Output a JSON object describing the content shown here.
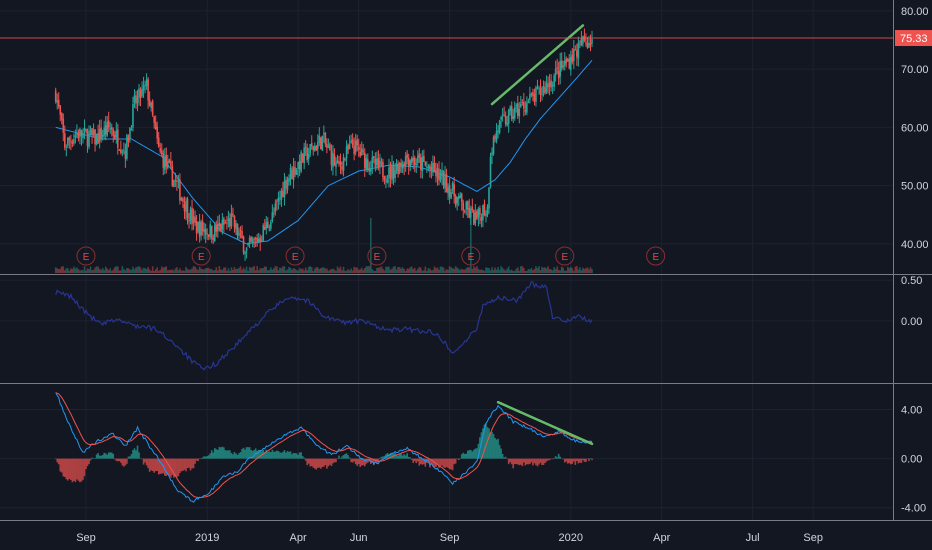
{
  "chart_data": {
    "type": "candlestick",
    "last_price_label": "75.33",
    "last_price": 75.33,
    "colors": {
      "background": "#131722",
      "up": "#26a69a",
      "down": "#ef5350",
      "ma": "#2196f3",
      "price_line": "#ef5350",
      "trendline": "#66bb6a",
      "indicator_line": "#283593",
      "macd": "#2196f3",
      "signal": "#ef5350",
      "grid": "#1e2230",
      "separator": "#787b86",
      "text": "#d1d4dc"
    },
    "x_axis": {
      "labels": [
        "Sep",
        "2019",
        "Apr",
        "Jun",
        "Sep",
        "2020",
        "Apr",
        "Jul",
        "Sep"
      ],
      "months": [
        0,
        4,
        7,
        9,
        12,
        16,
        19,
        22,
        24
      ]
    },
    "panes": {
      "price": {
        "ylim": [
          35,
          81
        ],
        "ticks": [
          "80.00",
          "70.00",
          "60.00",
          "50.00",
          "40.00"
        ],
        "tick_values": [
          80,
          70,
          60,
          50,
          40
        ]
      },
      "indicator": {
        "ylim": [
          -0.75,
          0.55
        ],
        "ticks": [
          "0.50",
          "0.00"
        ],
        "tick_values": [
          0.5,
          0.0
        ]
      },
      "macd": {
        "ylim": [
          -5,
          6
        ],
        "ticks": [
          "4.00",
          "0.00",
          "-4.00"
        ],
        "tick_values": [
          4,
          0,
          -4
        ]
      }
    },
    "price_anchors": [
      [
        -1.0,
        66
      ],
      [
        -0.7,
        57
      ],
      [
        -0.3,
        59
      ],
      [
        0.3,
        58
      ],
      [
        0.8,
        60
      ],
      [
        1.3,
        56
      ],
      [
        1.6,
        64
      ],
      [
        2.0,
        67
      ],
      [
        2.4,
        56
      ],
      [
        3.0,
        50
      ],
      [
        3.6,
        43
      ],
      [
        4.2,
        42
      ],
      [
        4.8,
        44
      ],
      [
        5.3,
        39
      ],
      [
        5.7,
        41
      ],
      [
        6.2,
        45
      ],
      [
        6.6,
        51
      ],
      [
        7.2,
        55
      ],
      [
        7.8,
        58
      ],
      [
        8.3,
        53
      ],
      [
        8.8,
        57
      ],
      [
        9.3,
        54
      ],
      [
        10.0,
        52
      ],
      [
        10.6,
        55
      ],
      [
        11.3,
        53
      ],
      [
        11.8,
        51
      ],
      [
        12.5,
        46
      ],
      [
        12.9,
        44
      ],
      [
        13.1,
        46
      ],
      [
        13.25,
        46
      ],
      [
        13.35,
        56
      ],
      [
        13.6,
        60
      ],
      [
        14.0,
        62
      ],
      [
        14.5,
        64
      ],
      [
        15.0,
        66
      ],
      [
        15.5,
        69
      ],
      [
        16.0,
        72
      ],
      [
        16.4,
        74.5
      ],
      [
        16.7,
        75.33
      ]
    ],
    "ma_anchors": [
      [
        -1.0,
        60
      ],
      [
        0.5,
        58
      ],
      [
        1.5,
        58
      ],
      [
        2.5,
        55
      ],
      [
        3.5,
        48
      ],
      [
        4.5,
        42
      ],
      [
        5.3,
        40
      ],
      [
        6.0,
        40.5
      ],
      [
        7.0,
        44
      ],
      [
        8.0,
        50
      ],
      [
        9.0,
        52.5
      ],
      [
        10.0,
        53.5
      ],
      [
        11.0,
        53.2
      ],
      [
        12.0,
        51.5
      ],
      [
        12.9,
        49
      ],
      [
        13.5,
        51
      ],
      [
        14.0,
        54
      ],
      [
        14.5,
        58
      ],
      [
        15.0,
        61.5
      ],
      [
        15.6,
        65
      ],
      [
        16.2,
        68.5
      ],
      [
        16.7,
        71.5
      ]
    ],
    "indicator_anchors": [
      [
        -1.0,
        0.35
      ],
      [
        -0.5,
        0.3
      ],
      [
        0.0,
        0.1
      ],
      [
        0.5,
        -0.05
      ],
      [
        1.0,
        0.02
      ],
      [
        1.5,
        -0.05
      ],
      [
        2.3,
        -0.1
      ],
      [
        3.0,
        -0.3
      ],
      [
        3.5,
        -0.5
      ],
      [
        3.9,
        -0.6
      ],
      [
        4.3,
        -0.52
      ],
      [
        5.0,
        -0.28
      ],
      [
        5.6,
        -0.05
      ],
      [
        6.0,
        0.1
      ],
      [
        6.7,
        0.3
      ],
      [
        7.3,
        0.25
      ],
      [
        7.9,
        0.05
      ],
      [
        8.5,
        -0.02
      ],
      [
        9.0,
        0.0
      ],
      [
        9.5,
        -0.05
      ],
      [
        10.0,
        -0.12
      ],
      [
        10.5,
        -0.1
      ],
      [
        11.0,
        -0.12
      ],
      [
        11.6,
        -0.15
      ],
      [
        12.1,
        -0.4
      ],
      [
        12.6,
        -0.22
      ],
      [
        12.9,
        -0.1
      ],
      [
        13.1,
        0.2
      ],
      [
        13.6,
        0.28
      ],
      [
        14.2,
        0.25
      ],
      [
        14.7,
        0.45
      ],
      [
        15.2,
        0.42
      ],
      [
        15.4,
        0.05
      ],
      [
        15.8,
        0.0
      ],
      [
        16.2,
        0.05
      ],
      [
        16.5,
        0.02
      ],
      [
        16.7,
        0.0
      ]
    ],
    "macd_anchors": [
      [
        -1.0,
        5.5
      ],
      [
        -0.6,
        3.0
      ],
      [
        -0.1,
        0.5
      ],
      [
        0.4,
        1.5
      ],
      [
        0.9,
        2.0
      ],
      [
        1.3,
        1.0
      ],
      [
        1.7,
        2.5
      ],
      [
        2.1,
        1.0
      ],
      [
        2.6,
        -0.8
      ],
      [
        3.0,
        -2.5
      ],
      [
        3.5,
        -3.5
      ],
      [
        4.0,
        -3.0
      ],
      [
        4.5,
        -1.5
      ],
      [
        5.0,
        -1.0
      ],
      [
        5.4,
        0.0
      ],
      [
        6.0,
        1.0
      ],
      [
        6.6,
        2.0
      ],
      [
        7.1,
        2.5
      ],
      [
        7.6,
        1.2
      ],
      [
        8.1,
        0.3
      ],
      [
        8.6,
        1.0
      ],
      [
        9.1,
        0.0
      ],
      [
        9.6,
        -0.4
      ],
      [
        10.1,
        0.5
      ],
      [
        10.6,
        0.8
      ],
      [
        11.1,
        0.0
      ],
      [
        11.6,
        -0.8
      ],
      [
        12.1,
        -2.0
      ],
      [
        12.6,
        -1.0
      ],
      [
        12.9,
        -0.3
      ],
      [
        13.2,
        3.0
      ],
      [
        13.6,
        4.3
      ],
      [
        14.1,
        3.0
      ],
      [
        14.6,
        2.5
      ],
      [
        15.1,
        1.8
      ],
      [
        15.6,
        2.2
      ],
      [
        16.1,
        1.5
      ],
      [
        16.7,
        1.3
      ]
    ],
    "earnings_months": [
      0.0,
      3.8,
      6.9,
      9.6,
      12.7,
      15.8,
      18.8
    ],
    "earnings_label": "E",
    "trendlines": [
      {
        "pane": "price",
        "from": [
          13.4,
          64.0
        ],
        "to": [
          16.4,
          77.5
        ]
      },
      {
        "pane": "macd",
        "from": [
          13.6,
          4.6
        ],
        "to": [
          16.7,
          1.2
        ]
      }
    ],
    "volume_spike_months": [
      9.4,
      12.7
    ]
  }
}
